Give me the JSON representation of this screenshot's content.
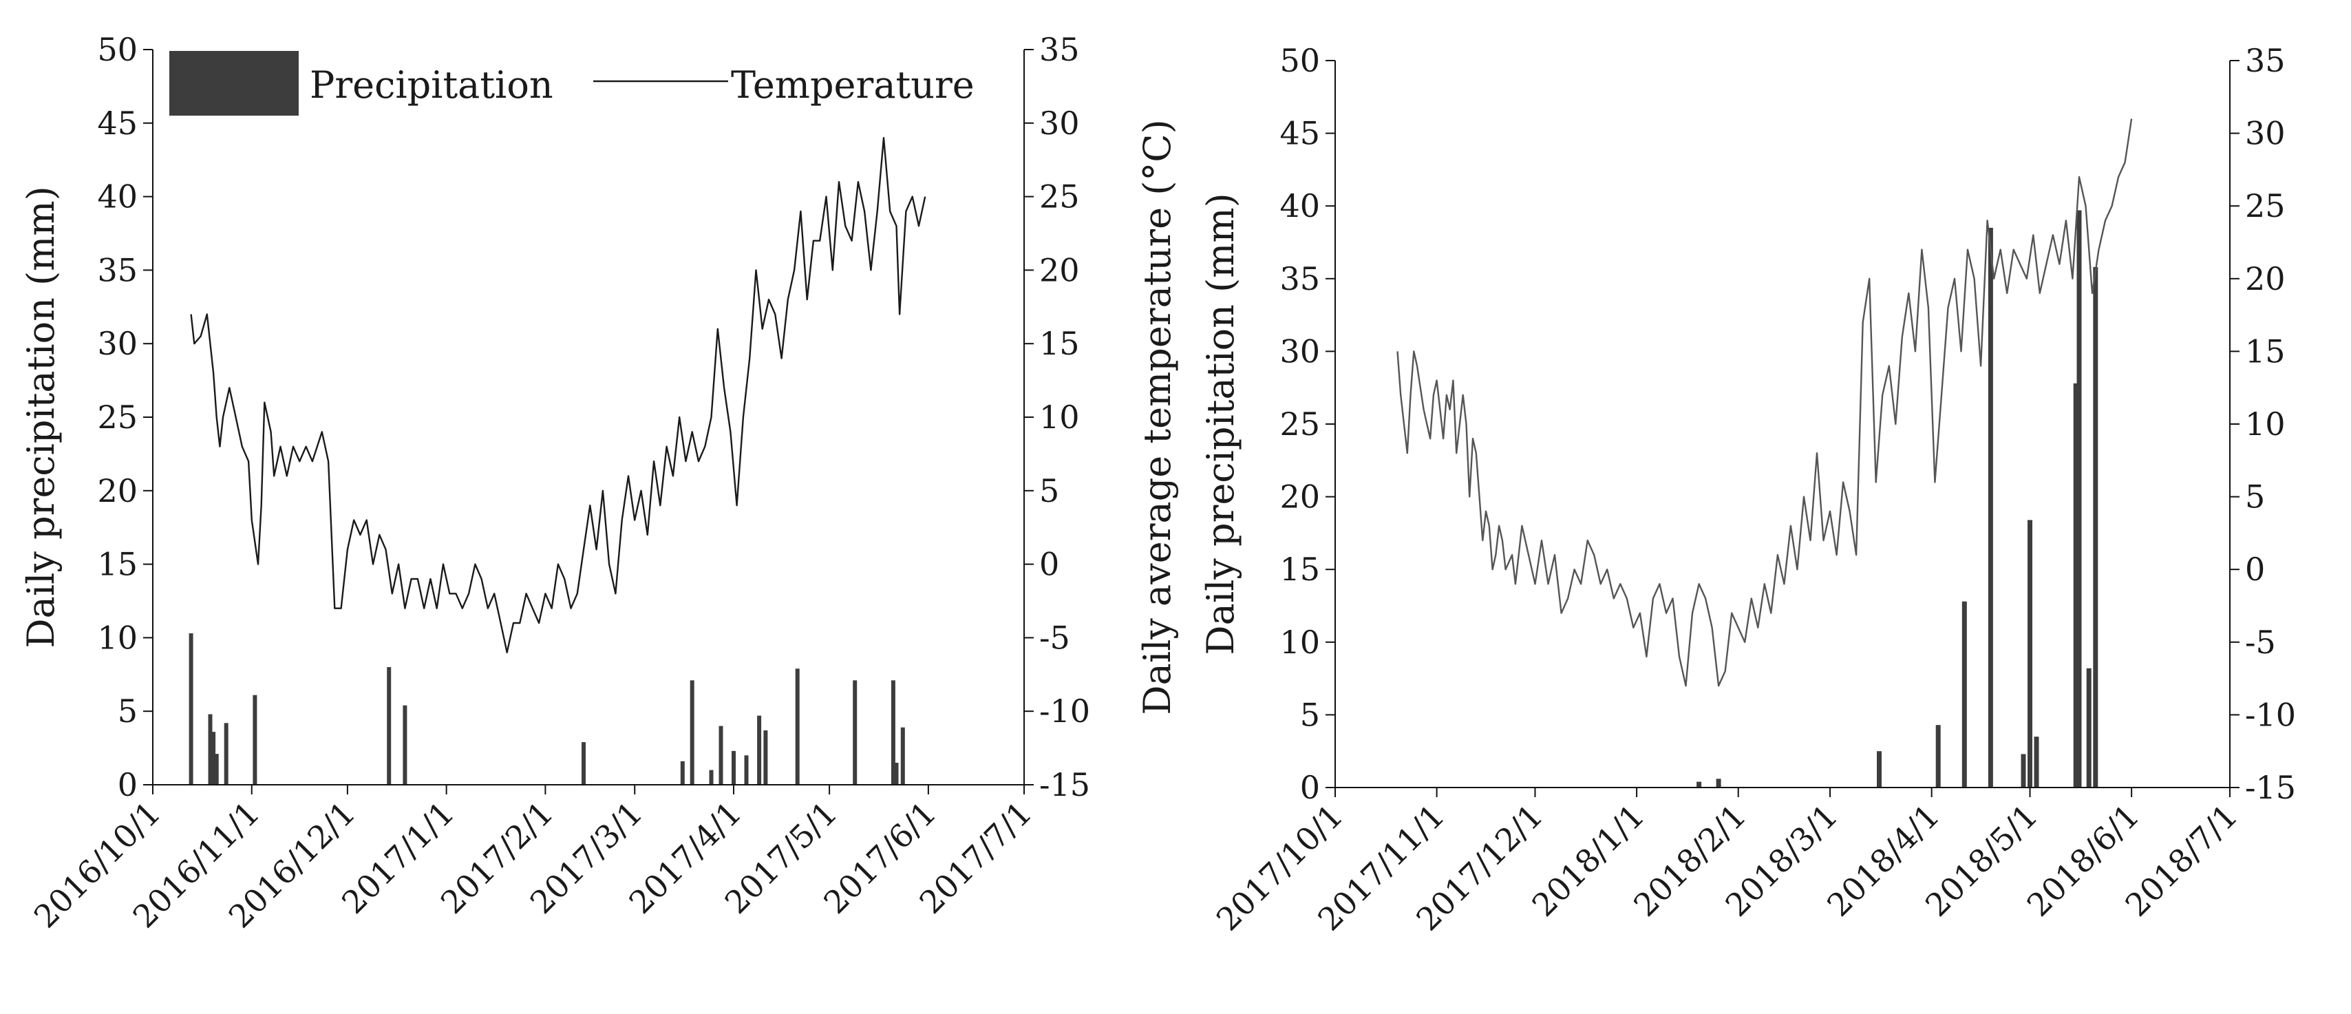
{
  "colors": {
    "bar": "#3d3d3d",
    "line_left": "#1a1a1a",
    "line_right": "#555555",
    "axis": "#111111"
  },
  "legend": {
    "precipitation": "Precipitation",
    "temperature": "Temperature"
  },
  "chart_data": [
    {
      "type": "bar+line",
      "title": "",
      "ylabel_left": "Daily precipitation (mm)",
      "ylabel_right": "Daily average temperature (°C)",
      "ylim_left": [
        0,
        50
      ],
      "ylim_right": [
        -15,
        35
      ],
      "yticks_left": [
        "0",
        "5",
        "10",
        "15",
        "20",
        "25",
        "30",
        "35",
        "40",
        "45",
        "50"
      ],
      "yticks_right": [
        "-15",
        "-10",
        "-5",
        "0",
        "5",
        "10",
        "15",
        "20",
        "25",
        "30",
        "35"
      ],
      "x_day_range": [
        0,
        273
      ],
      "xticks": [
        {
          "label": "2016/10/1",
          "day": 0
        },
        {
          "label": "2016/11/1",
          "day": 31
        },
        {
          "label": "2016/12/1",
          "day": 61
        },
        {
          "label": "2017/1/1",
          "day": 92
        },
        {
          "label": "2017/2/1",
          "day": 123
        },
        {
          "label": "2017/3/1",
          "day": 151
        },
        {
          "label": "2017/4/1",
          "day": 182
        },
        {
          "label": "2017/5/1",
          "day": 212
        },
        {
          "label": "2017/6/1",
          "day": 243
        },
        {
          "label": "2017/7/1",
          "day": 273
        }
      ],
      "legend_position": "top",
      "precipitation": [
        {
          "day": 12,
          "value": 10.3
        },
        {
          "day": 18,
          "value": 4.8
        },
        {
          "day": 19,
          "value": 3.6
        },
        {
          "day": 20,
          "value": 2.1
        },
        {
          "day": 23,
          "value": 4.2
        },
        {
          "day": 32,
          "value": 6.1
        },
        {
          "day": 74,
          "value": 8.0
        },
        {
          "day": 79,
          "value": 5.4
        },
        {
          "day": 135,
          "value": 2.9
        },
        {
          "day": 166,
          "value": 1.6
        },
        {
          "day": 169,
          "value": 7.1
        },
        {
          "day": 175,
          "value": 1.0
        },
        {
          "day": 178,
          "value": 4.0
        },
        {
          "day": 182,
          "value": 2.3
        },
        {
          "day": 186,
          "value": 2.0
        },
        {
          "day": 190,
          "value": 4.7
        },
        {
          "day": 192,
          "value": 3.7
        },
        {
          "day": 202,
          "value": 7.9
        },
        {
          "day": 220,
          "value": 7.1
        },
        {
          "day": 232,
          "value": 7.1
        },
        {
          "day": 233,
          "value": 1.5
        },
        {
          "day": 235,
          "value": 3.9
        }
      ],
      "temperature": [
        [
          12,
          17
        ],
        [
          13,
          15
        ],
        [
          15,
          15.5
        ],
        [
          17,
          17
        ],
        [
          19,
          13
        ],
        [
          20,
          10
        ],
        [
          21,
          8
        ],
        [
          22,
          10
        ],
        [
          24,
          12
        ],
        [
          26,
          10
        ],
        [
          28,
          8
        ],
        [
          30,
          7
        ],
        [
          31,
          3
        ],
        [
          33,
          0
        ],
        [
          34,
          4
        ],
        [
          35,
          11
        ],
        [
          37,
          9
        ],
        [
          38,
          6
        ],
        [
          40,
          8
        ],
        [
          42,
          6
        ],
        [
          44,
          8
        ],
        [
          46,
          7
        ],
        [
          48,
          8
        ],
        [
          50,
          7
        ],
        [
          53,
          9
        ],
        [
          55,
          7
        ],
        [
          57,
          -3
        ],
        [
          59,
          -3
        ],
        [
          61,
          1
        ],
        [
          63,
          3
        ],
        [
          65,
          2
        ],
        [
          67,
          3
        ],
        [
          69,
          0
        ],
        [
          71,
          2
        ],
        [
          73,
          1
        ],
        [
          75,
          -2
        ],
        [
          77,
          0
        ],
        [
          79,
          -3
        ],
        [
          81,
          -1
        ],
        [
          83,
          -1
        ],
        [
          85,
          -3
        ],
        [
          87,
          -1
        ],
        [
          89,
          -3
        ],
        [
          91,
          0
        ],
        [
          93,
          -2
        ],
        [
          95,
          -2
        ],
        [
          97,
          -3
        ],
        [
          99,
          -2
        ],
        [
          101,
          0
        ],
        [
          103,
          -1
        ],
        [
          105,
          -3
        ],
        [
          107,
          -2
        ],
        [
          109,
          -4
        ],
        [
          111,
          -6
        ],
        [
          113,
          -4
        ],
        [
          115,
          -4
        ],
        [
          117,
          -2
        ],
        [
          119,
          -3
        ],
        [
          121,
          -4
        ],
        [
          123,
          -2
        ],
        [
          125,
          -3
        ],
        [
          127,
          0
        ],
        [
          129,
          -1
        ],
        [
          131,
          -3
        ],
        [
          133,
          -2
        ],
        [
          135,
          1
        ],
        [
          137,
          4
        ],
        [
          139,
          1
        ],
        [
          141,
          5
        ],
        [
          143,
          0
        ],
        [
          145,
          -2
        ],
        [
          147,
          3
        ],
        [
          149,
          6
        ],
        [
          151,
          3
        ],
        [
          153,
          5
        ],
        [
          155,
          2
        ],
        [
          157,
          7
        ],
        [
          159,
          4
        ],
        [
          161,
          8
        ],
        [
          163,
          6
        ],
        [
          165,
          10
        ],
        [
          167,
          7
        ],
        [
          169,
          9
        ],
        [
          171,
          7
        ],
        [
          173,
          8
        ],
        [
          175,
          10
        ],
        [
          177,
          16
        ],
        [
          179,
          12
        ],
        [
          181,
          9
        ],
        [
          183,
          4
        ],
        [
          185,
          10
        ],
        [
          187,
          14
        ],
        [
          189,
          20
        ],
        [
          191,
          16
        ],
        [
          193,
          18
        ],
        [
          195,
          17
        ],
        [
          197,
          14
        ],
        [
          199,
          18
        ],
        [
          201,
          20
        ],
        [
          203,
          24
        ],
        [
          205,
          18
        ],
        [
          207,
          22
        ],
        [
          209,
          22
        ],
        [
          211,
          25
        ],
        [
          213,
          20
        ],
        [
          215,
          26
        ],
        [
          217,
          23
        ],
        [
          219,
          22
        ],
        [
          221,
          26
        ],
        [
          223,
          24
        ],
        [
          225,
          20
        ],
        [
          227,
          24
        ],
        [
          229,
          29
        ],
        [
          231,
          24
        ],
        [
          233,
          23
        ],
        [
          234,
          17
        ],
        [
          236,
          24
        ],
        [
          238,
          25
        ],
        [
          240,
          23
        ],
        [
          242,
          25
        ]
      ]
    },
    {
      "type": "bar+line",
      "title": "",
      "ylabel_left": "Daily precipitation (mm)",
      "ylabel_right": "",
      "ylim_left": [
        0,
        50
      ],
      "ylim_right": [
        -15,
        35
      ],
      "yticks_left": [
        "0",
        "5",
        "10",
        "15",
        "20",
        "25",
        "30",
        "35",
        "40",
        "45",
        "50"
      ],
      "yticks_right": [
        "-15",
        "-10",
        "-5",
        "0",
        "5",
        "10",
        "15",
        "20",
        "25",
        "30",
        "35"
      ],
      "x_day_range": [
        0,
        273
      ],
      "xticks": [
        {
          "label": "2017/10/1",
          "day": 0
        },
        {
          "label": "2017/11/1",
          "day": 31
        },
        {
          "label": "2017/12/1",
          "day": 61
        },
        {
          "label": "2018/1/1",
          "day": 92
        },
        {
          "label": "2018/2/1",
          "day": 123
        },
        {
          "label": "2018/3/1",
          "day": 151
        },
        {
          "label": "2018/4/1",
          "day": 182
        },
        {
          "label": "2018/5/1",
          "day": 212
        },
        {
          "label": "2018/6/1",
          "day": 243
        },
        {
          "label": "2018/7/1",
          "day": 273
        }
      ],
      "precipitation": [
        {
          "day": 111,
          "value": 0.4
        },
        {
          "day": 117,
          "value": 0.6
        },
        {
          "day": 166,
          "value": 2.5
        },
        {
          "day": 184,
          "value": 4.3
        },
        {
          "day": 192,
          "value": 12.8
        },
        {
          "day": 200,
          "value": 38.5
        },
        {
          "day": 210,
          "value": 2.3
        },
        {
          "day": 212,
          "value": 18.4
        },
        {
          "day": 214,
          "value": 3.5
        },
        {
          "day": 226,
          "value": 27.8
        },
        {
          "day": 227,
          "value": 39.7
        },
        {
          "day": 230,
          "value": 8.2
        },
        {
          "day": 232,
          "value": 35.8
        }
      ],
      "temperature": [
        [
          19,
          15
        ],
        [
          20,
          12
        ],
        [
          21,
          10
        ],
        [
          22,
          8
        ],
        [
          23,
          12
        ],
        [
          24,
          15
        ],
        [
          25,
          14
        ],
        [
          27,
          11
        ],
        [
          28,
          10
        ],
        [
          29,
          9
        ],
        [
          30,
          12
        ],
        [
          31,
          13
        ],
        [
          32,
          11
        ],
        [
          33,
          9
        ],
        [
          34,
          12
        ],
        [
          35,
          11
        ],
        [
          36,
          13
        ],
        [
          37,
          8
        ],
        [
          39,
          12
        ],
        [
          40,
          10
        ],
        [
          41,
          5
        ],
        [
          42,
          9
        ],
        [
          43,
          8
        ],
        [
          45,
          2
        ],
        [
          46,
          4
        ],
        [
          47,
          3
        ],
        [
          48,
          0
        ],
        [
          49,
          1
        ],
        [
          50,
          3
        ],
        [
          51,
          2
        ],
        [
          52,
          0
        ],
        [
          54,
          1
        ],
        [
          55,
          -1
        ],
        [
          57,
          3
        ],
        [
          59,
          1
        ],
        [
          61,
          -1
        ],
        [
          63,
          2
        ],
        [
          65,
          -1
        ],
        [
          67,
          1
        ],
        [
          69,
          -3
        ],
        [
          71,
          -2
        ],
        [
          73,
          0
        ],
        [
          75,
          -1
        ],
        [
          77,
          2
        ],
        [
          79,
          1
        ],
        [
          81,
          -1
        ],
        [
          83,
          0
        ],
        [
          85,
          -2
        ],
        [
          87,
          -1
        ],
        [
          89,
          -2
        ],
        [
          91,
          -4
        ],
        [
          93,
          -3
        ],
        [
          95,
          -6
        ],
        [
          97,
          -2
        ],
        [
          99,
          -1
        ],
        [
          101,
          -3
        ],
        [
          103,
          -2
        ],
        [
          105,
          -6
        ],
        [
          107,
          -8
        ],
        [
          109,
          -3
        ],
        [
          111,
          -1
        ],
        [
          113,
          -2
        ],
        [
          115,
          -4
        ],
        [
          117,
          -8
        ],
        [
          119,
          -7
        ],
        [
          121,
          -3
        ],
        [
          123,
          -4
        ],
        [
          125,
          -5
        ],
        [
          127,
          -2
        ],
        [
          129,
          -4
        ],
        [
          131,
          -1
        ],
        [
          133,
          -3
        ],
        [
          135,
          1
        ],
        [
          137,
          -1
        ],
        [
          139,
          3
        ],
        [
          141,
          0
        ],
        [
          143,
          5
        ],
        [
          145,
          2
        ],
        [
          147,
          8
        ],
        [
          149,
          2
        ],
        [
          151,
          4
        ],
        [
          153,
          1
        ],
        [
          155,
          6
        ],
        [
          157,
          4
        ],
        [
          159,
          1
        ],
        [
          161,
          17
        ],
        [
          163,
          20
        ],
        [
          165,
          6
        ],
        [
          167,
          12
        ],
        [
          169,
          14
        ],
        [
          171,
          10
        ],
        [
          173,
          16
        ],
        [
          175,
          19
        ],
        [
          177,
          15
        ],
        [
          179,
          22
        ],
        [
          181,
          18
        ],
        [
          183,
          6
        ],
        [
          185,
          12
        ],
        [
          187,
          18
        ],
        [
          189,
          20
        ],
        [
          191,
          15
        ],
        [
          193,
          22
        ],
        [
          195,
          20
        ],
        [
          197,
          14
        ],
        [
          199,
          24
        ],
        [
          201,
          20
        ],
        [
          203,
          22
        ],
        [
          205,
          19
        ],
        [
          207,
          22
        ],
        [
          209,
          21
        ],
        [
          211,
          20
        ],
        [
          213,
          23
        ],
        [
          215,
          19
        ],
        [
          217,
          21
        ],
        [
          219,
          23
        ],
        [
          221,
          21
        ],
        [
          223,
          24
        ],
        [
          225,
          20
        ],
        [
          227,
          27
        ],
        [
          229,
          25
        ],
        [
          231,
          19
        ],
        [
          233,
          22
        ],
        [
          235,
          24
        ],
        [
          237,
          25
        ],
        [
          239,
          27
        ],
        [
          241,
          28
        ],
        [
          243,
          31
        ]
      ]
    }
  ]
}
